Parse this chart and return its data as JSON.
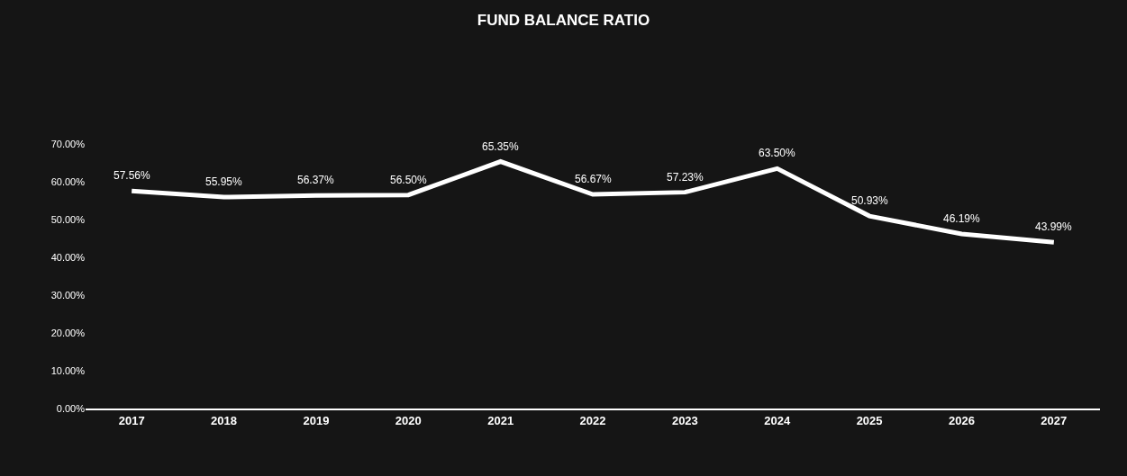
{
  "chart_data": {
    "type": "line",
    "title": "FUND BALANCE RATIO",
    "categories": [
      "2017",
      "2018",
      "2019",
      "2020",
      "2021",
      "2022",
      "2023",
      "2024",
      "2025",
      "2026",
      "2027"
    ],
    "series": [
      {
        "color": "#ffffff",
        "values": [
          57.56,
          55.95,
          56.37,
          56.5,
          65.35,
          56.67,
          57.23,
          63.5,
          50.93,
          46.19,
          43.99
        ]
      }
    ],
    "value_labels": [
      "57.56%",
      "55.95%",
      "56.37%",
      "56.50%",
      "65.35%",
      "56.67%",
      "57.23%",
      "63.50%",
      "50.93%",
      "46.19%",
      "43.99%"
    ],
    "ylim": [
      0,
      70
    ],
    "yticks": [
      {
        "value": 0,
        "label": "0.00%"
      },
      {
        "value": 10,
        "label": "10.00%"
      },
      {
        "value": 20,
        "label": "20.00%"
      },
      {
        "value": 30,
        "label": "30.00%"
      },
      {
        "value": 40,
        "label": "40.00%"
      },
      {
        "value": 50,
        "label": "50.00%"
      },
      {
        "value": 60,
        "label": "60.00%"
      },
      {
        "value": 70,
        "label": "70.00%"
      }
    ],
    "grid": false,
    "marker": "none",
    "line_style": "solid"
  }
}
